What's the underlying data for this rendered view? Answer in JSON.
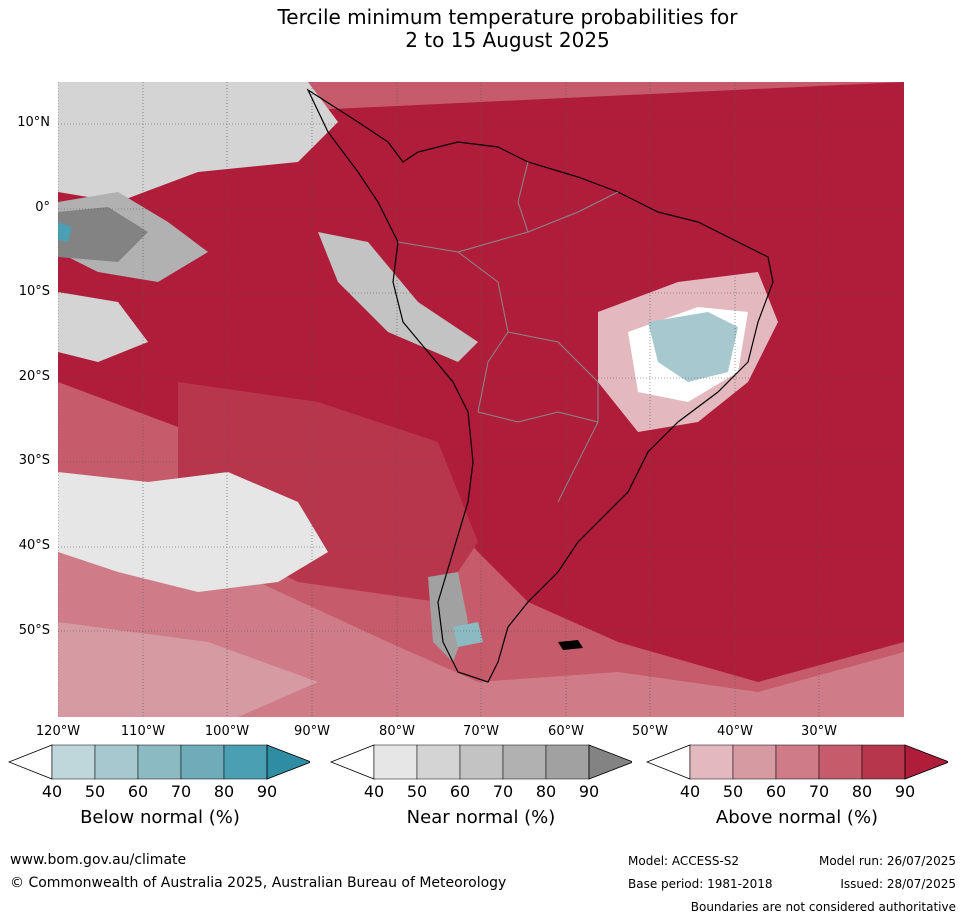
{
  "title": {
    "line1": "Tercile minimum temperature probabilities for",
    "line2": "2 to 15 August 2025"
  },
  "axes": {
    "lat_labels": [
      "10°N",
      "0°",
      "10°S",
      "20°S",
      "30°S",
      "40°S",
      "50°S"
    ],
    "lon_labels": [
      "120°W",
      "110°W",
      "100°W",
      "90°W",
      "80°W",
      "70°W",
      "60°W",
      "50°W",
      "40°W",
      "30°W"
    ]
  },
  "legends": {
    "below": {
      "title": "Below normal (%)",
      "ticks": [
        "40",
        "50",
        "60",
        "70",
        "80",
        "90"
      ],
      "colors": [
        "#ffffff",
        "#bfd6db",
        "#a6c8ce",
        "#8bbac3",
        "#6eacb9",
        "#4aa0b2",
        "#2e8da2"
      ]
    },
    "near": {
      "title": "Near normal (%)",
      "ticks": [
        "40",
        "50",
        "60",
        "70",
        "80",
        "90"
      ],
      "colors": [
        "#ffffff",
        "#e6e6e6",
        "#d4d4d4",
        "#c3c3c3",
        "#b1b1b1",
        "#a1a1a1",
        "#838383"
      ]
    },
    "above": {
      "title": "Above normal (%)",
      "ticks": [
        "40",
        "50",
        "60",
        "70",
        "80",
        "90"
      ],
      "colors": [
        "#ffffff",
        "#e3b9bf",
        "#d69aa3",
        "#cf7c88",
        "#c65b6b",
        "#b8364c",
        "#b01d3b"
      ]
    }
  },
  "footer": {
    "website": "www.bom.gov.au/climate",
    "copyright": "© Commonwealth of Australia 2025, Australian Bureau of Meteorology",
    "model": "Model: ACCESS-S2",
    "base_period": "Base period: 1981-2018",
    "model_run": "Model run: 26/07/2025",
    "issued": "Issued: 28/07/2025",
    "disclaimer": "Boundaries are not considered authoritative"
  }
}
